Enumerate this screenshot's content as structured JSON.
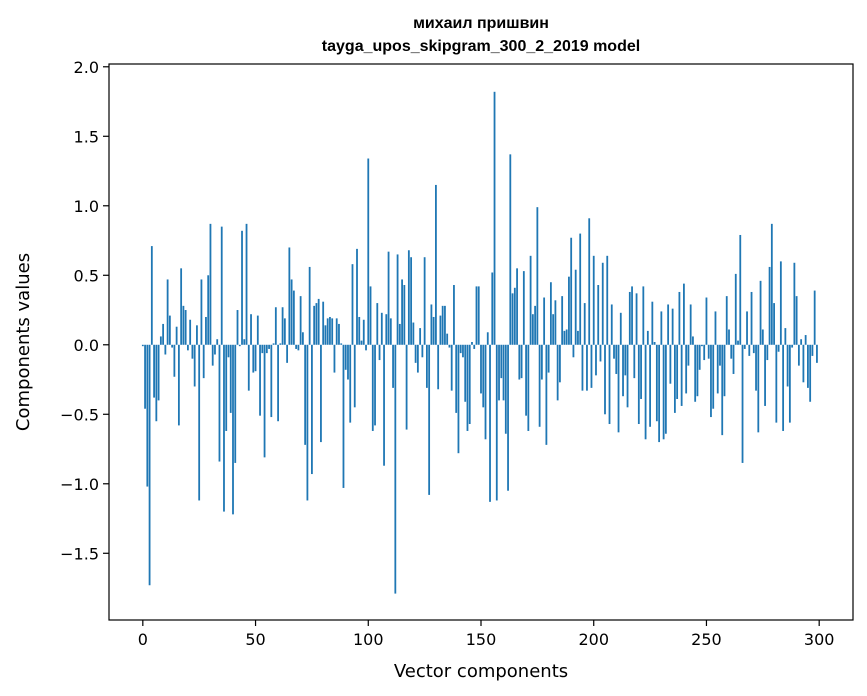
{
  "chart_data": {
    "type": "bar",
    "title_lines": [
      "михаил пришвин",
      "tayga_upos_skipgram_300_2_2019 model"
    ],
    "xlabel": "Vector components",
    "ylabel": "Components values",
    "xlim": [
      -15,
      315
    ],
    "ylim": [
      -1.98,
      2.02
    ],
    "xticks": [
      0,
      50,
      100,
      150,
      200,
      250,
      300
    ],
    "xtick_labels": [
      "0",
      "50",
      "100",
      "150",
      "200",
      "250",
      "300"
    ],
    "yticks": [
      -1.5,
      -1.0,
      -0.5,
      0.0,
      0.5,
      1.0,
      1.5,
      2.0
    ],
    "ytick_labels": [
      "−1.5",
      "−1.0",
      "−0.5",
      "0.0",
      "0.5",
      "1.0",
      "1.5",
      "2.0"
    ],
    "bar_color": "#1f77b4",
    "x": [
      0,
      1,
      2,
      3,
      4,
      5,
      6,
      7,
      8,
      9,
      10,
      11,
      12,
      13,
      14,
      15,
      16,
      17,
      18,
      19,
      20,
      21,
      22,
      23,
      24,
      25,
      26,
      27,
      28,
      29,
      30,
      31,
      32,
      33,
      34,
      35,
      36,
      37,
      38,
      39,
      40,
      41,
      42,
      43,
      44,
      45,
      46,
      47,
      48,
      49,
      50,
      51,
      52,
      53,
      54,
      55,
      56,
      57,
      58,
      59,
      60,
      61,
      62,
      63,
      64,
      65,
      66,
      67,
      68,
      69,
      70,
      71,
      72,
      73,
      74,
      75,
      76,
      77,
      78,
      79,
      80,
      81,
      82,
      83,
      84,
      85,
      86,
      87,
      88,
      89,
      90,
      91,
      92,
      93,
      94,
      95,
      96,
      97,
      98,
      99,
      100,
      101,
      102,
      103,
      104,
      105,
      106,
      107,
      108,
      109,
      110,
      111,
      112,
      113,
      114,
      115,
      116,
      117,
      118,
      119,
      120,
      121,
      122,
      123,
      124,
      125,
      126,
      127,
      128,
      129,
      130,
      131,
      132,
      133,
      134,
      135,
      136,
      137,
      138,
      139,
      140,
      141,
      142,
      143,
      144,
      145,
      146,
      147,
      148,
      149,
      150,
      151,
      152,
      153,
      154,
      155,
      156,
      157,
      158,
      159,
      160,
      161,
      162,
      163,
      164,
      165,
      166,
      167,
      168,
      169,
      170,
      171,
      172,
      173,
      174,
      175,
      176,
      177,
      178,
      179,
      180,
      181,
      182,
      183,
      184,
      185,
      186,
      187,
      188,
      189,
      190,
      191,
      192,
      193,
      194,
      195,
      196,
      197,
      198,
      199,
      200,
      201,
      202,
      203,
      204,
      205,
      206,
      207,
      208,
      209,
      210,
      211,
      212,
      213,
      214,
      215,
      216,
      217,
      218,
      219,
      220,
      221,
      222,
      223,
      224,
      225,
      226,
      227,
      228,
      229,
      230,
      231,
      232,
      233,
      234,
      235,
      236,
      237,
      238,
      239,
      240,
      241,
      242,
      243,
      244,
      245,
      246,
      247,
      248,
      249,
      250,
      251,
      252,
      253,
      254,
      255,
      256,
      257,
      258,
      259,
      260,
      261,
      262,
      263,
      264,
      265,
      266,
      267,
      268,
      269,
      270,
      271,
      272,
      273,
      274,
      275,
      276,
      277,
      278,
      279,
      280,
      281,
      282,
      283,
      284,
      285,
      286,
      287,
      288,
      289,
      290,
      291,
      292,
      293,
      294,
      295,
      296,
      297,
      298,
      299
    ],
    "values": [
      -0.01,
      -0.46,
      -1.02,
      -1.73,
      0.71,
      -0.38,
      -0.55,
      -0.4,
      0.06,
      0.15,
      -0.07,
      0.47,
      0.21,
      -0.02,
      -0.23,
      0.13,
      -0.58,
      0.55,
      0.28,
      0.25,
      -0.04,
      0.18,
      -0.1,
      -0.3,
      0.14,
      -1.12,
      0.47,
      -0.24,
      0.2,
      0.5,
      0.87,
      -0.15,
      -0.07,
      0.04,
      -0.84,
      0.85,
      -1.2,
      -0.62,
      -0.09,
      -0.49,
      -1.22,
      -0.85,
      0.25,
      -0.01,
      0.82,
      0.04,
      0.87,
      -0.33,
      0.22,
      -0.2,
      -0.19,
      0.21,
      -0.51,
      -0.06,
      -0.81,
      -0.06,
      -0.03,
      -0.52,
      0.01,
      0.27,
      -0.55,
      0.01,
      0.27,
      0.19,
      -0.13,
      0.7,
      0.47,
      0.39,
      -0.03,
      -0.04,
      0.35,
      0.09,
      -0.72,
      -1.12,
      0.56,
      -0.93,
      0.28,
      0.3,
      0.33,
      -0.7,
      0.31,
      0.14,
      0.19,
      0.2,
      0.19,
      -0.2,
      0.19,
      0.15,
      0.01,
      -1.03,
      -0.18,
      -0.25,
      -0.56,
      0.58,
      -0.45,
      0.69,
      0.2,
      0.03,
      0.18,
      -0.04,
      1.34,
      0.42,
      -0.62,
      -0.58,
      0.3,
      -0.11,
      0.23,
      -0.87,
      0.22,
      0.67,
      0.19,
      -0.31,
      -1.79,
      0.65,
      0.15,
      0.47,
      0.43,
      -0.61,
      0.68,
      0.63,
      0.16,
      -0.13,
      -0.2,
      0.12,
      -0.09,
      0.63,
      -0.31,
      -1.08,
      0.29,
      0.2,
      1.15,
      -0.32,
      0.21,
      0.28,
      0.28,
      0.08,
      -0.02,
      -0.33,
      0.43,
      -0.49,
      -0.78,
      -0.06,
      -0.09,
      -0.41,
      -0.62,
      -0.57,
      0.02,
      -0.03,
      0.42,
      0.42,
      -0.35,
      -0.45,
      -0.68,
      0.09,
      -1.13,
      0.52,
      1.82,
      -1.12,
      -0.4,
      -0.24,
      -0.4,
      -0.64,
      -1.05,
      1.37,
      0.37,
      0.41,
      0.55,
      -0.25,
      -0.24,
      0.53,
      -0.51,
      -0.62,
      0.64,
      0.22,
      0.28,
      0.99,
      -0.59,
      -0.25,
      0.34,
      -0.72,
      -0.2,
      0.45,
      0.22,
      0.32,
      -0.4,
      -0.27,
      0.35,
      0.1,
      0.11,
      0.49,
      0.77,
      -0.09,
      0.54,
      0.1,
      0.8,
      -0.33,
      0.3,
      -0.33,
      0.91,
      -0.31,
      0.64,
      -0.22,
      0.43,
      -0.12,
      0.59,
      -0.5,
      0.64,
      -0.57,
      0.29,
      -0.1,
      -0.21,
      -0.63,
      0.23,
      -0.37,
      -0.22,
      -0.45,
      0.38,
      0.42,
      -0.24,
      0.37,
      -0.57,
      -0.39,
      0.42,
      -0.68,
      0.1,
      -0.59,
      0.31,
      0.02,
      -0.55,
      -0.7,
      0.24,
      -0.68,
      -0.64,
      0.29,
      -0.28,
      0.26,
      -0.49,
      -0.39,
      0.38,
      -0.44,
      0.44,
      -0.35,
      -0.15,
      0.29,
      0.06,
      -0.41,
      -0.37,
      -0.18,
      -0.01,
      -0.11,
      0.34,
      -0.1,
      -0.52,
      -0.46,
      0.24,
      -0.35,
      -0.15,
      -0.65,
      -0.37,
      0.35,
      0.11,
      -0.1,
      -0.21,
      0.51,
      0.03,
      0.79,
      -0.85,
      -0.03,
      0.24,
      -0.08,
      0.38,
      -0.06,
      -0.33,
      -0.63,
      0.46,
      0.11,
      -0.44,
      -0.11,
      0.56,
      0.87,
      0.3,
      -0.56,
      -0.05,
      0.6,
      -0.62,
      0.12,
      -0.3,
      -0.56,
      -0.02,
      0.59,
      0.35,
      -0.15,
      0.04,
      -0.27,
      0.07,
      -0.31,
      -0.41,
      -0.08,
      0.39,
      -0.13
    ]
  }
}
